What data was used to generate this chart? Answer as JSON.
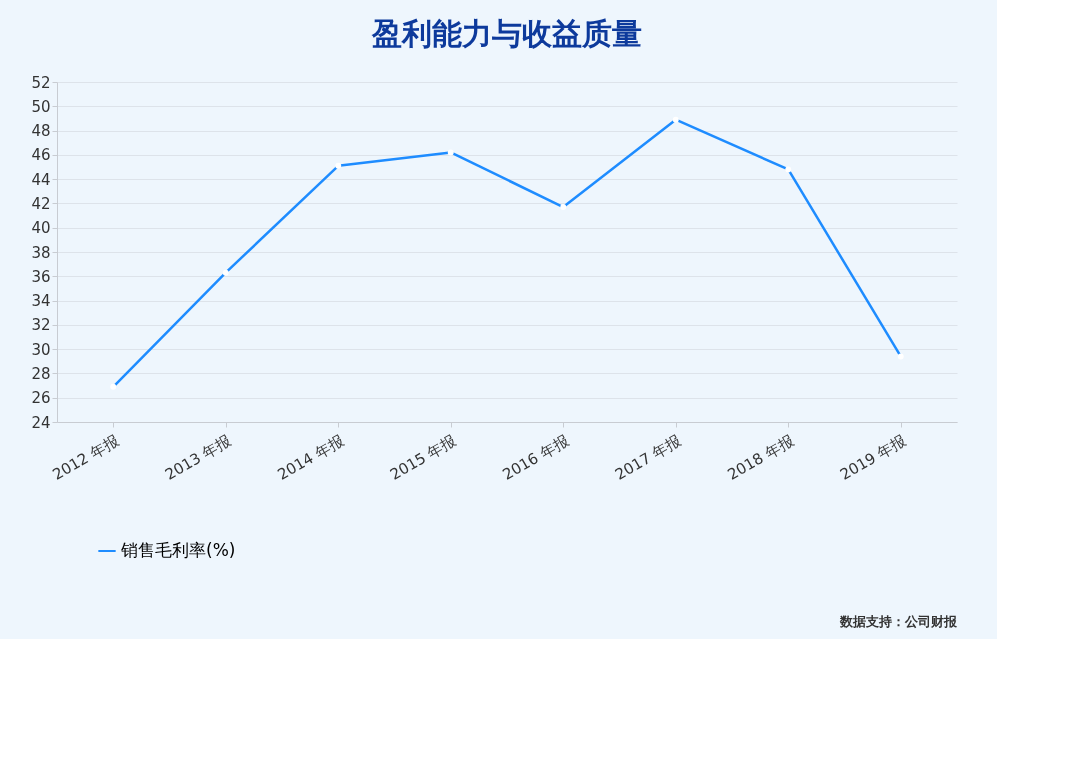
{
  "chart_data": {
    "type": "line",
    "title": "盈利能力与收益质量",
    "categories": [
      "2012 年报",
      "2013 年报",
      "2014 年报",
      "2015 年报",
      "2016 年报",
      "2017 年报",
      "2018 年报",
      "2019 年报"
    ],
    "series": [
      {
        "name": "销售毛利率(%)",
        "color": "#1e8cff",
        "values": [
          26.9,
          36.3,
          45.1,
          46.2,
          41.7,
          48.9,
          44.8,
          29.4
        ]
      }
    ],
    "ylim": [
      24,
      52
    ],
    "yticks": [
      24,
      26,
      28,
      30,
      32,
      34,
      36,
      38,
      40,
      42,
      44,
      46,
      48,
      50,
      52
    ],
    "grid": "y",
    "legend": "bottom",
    "marker": "circle",
    "line_style": "solid",
    "annotations": [
      "数据支持：公司财报"
    ]
  }
}
